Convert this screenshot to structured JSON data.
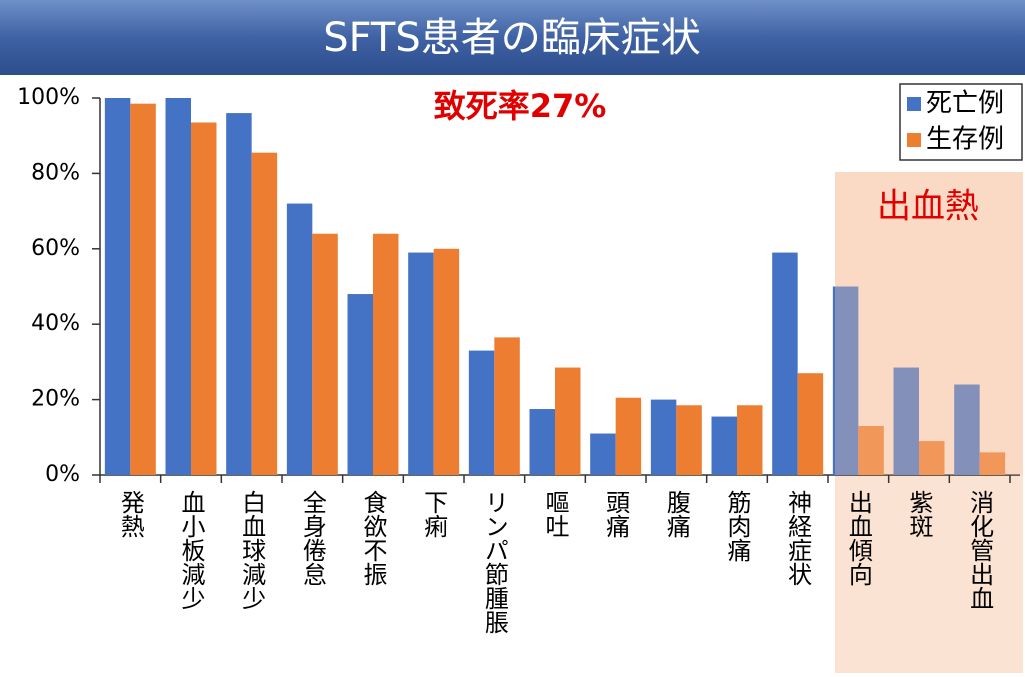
{
  "chart_data": {
    "type": "bar",
    "title": "SFTS患者の臨床症状",
    "annotations": [
      "致死率27%",
      "出血熱"
    ],
    "categories": [
      "発熱",
      "血小板減少",
      "白血球減少",
      "全身倦怠",
      "食欲不振",
      "下痢",
      "リンパ節腫脹",
      "嘔吐",
      "頭痛",
      "腹痛",
      "筋肉痛",
      "神経症状",
      "出血傾向",
      "紫斑",
      "消化管出血"
    ],
    "series": [
      {
        "name": "死亡例",
        "color": "#4472c4",
        "values": [
          100,
          100,
          96,
          72,
          48,
          59,
          33,
          17.5,
          11,
          20,
          15.5,
          59,
          50,
          28.5,
          24
        ]
      },
      {
        "name": "生存例",
        "color": "#ed7d31",
        "values": [
          98.5,
          93.5,
          85.5,
          64,
          64,
          60,
          36.5,
          28.5,
          20.5,
          18.5,
          18.5,
          27,
          13,
          9,
          6
        ]
      }
    ],
    "ylim": [
      0,
      100
    ],
    "yticks": [
      {
        "value": 0,
        "label": "0%"
      },
      {
        "value": 20,
        "label": "20%"
      },
      {
        "value": 40,
        "label": "40%"
      },
      {
        "value": 60,
        "label": "60%"
      },
      {
        "value": 80,
        "label": "80%"
      },
      {
        "value": 100,
        "label": "100%"
      }
    ],
    "legend": "top-right"
  }
}
